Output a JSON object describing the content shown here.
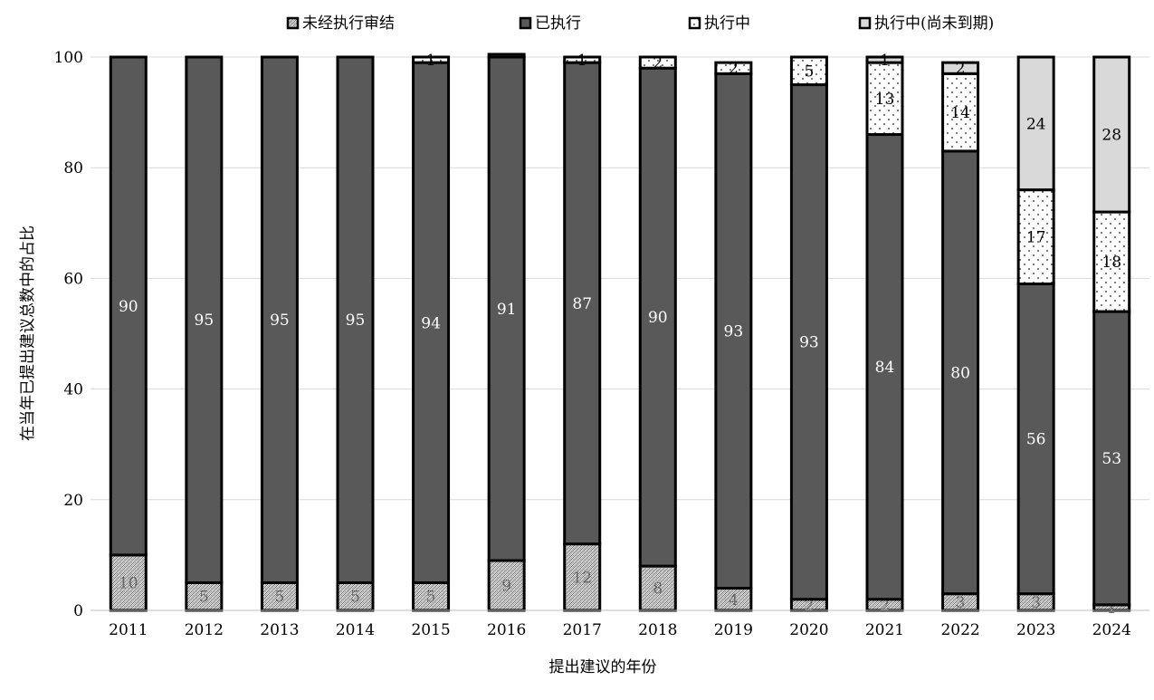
{
  "chart_data": {
    "type": "bar",
    "stacked": true,
    "title": "",
    "xlabel": "提出建议的年份",
    "ylabel": "在当年已提出建议总数中的占比",
    "ylim": [
      0,
      100
    ],
    "yticks": [
      "0",
      "20",
      "40",
      "60",
      "80",
      "100"
    ],
    "grid": true,
    "legend_position": "top",
    "categories": [
      "2011",
      "2012",
      "2013",
      "2014",
      "2015",
      "2016",
      "2017",
      "2018",
      "2019",
      "2020",
      "2021",
      "2022",
      "2023",
      "2024"
    ],
    "series": [
      {
        "name": "未经执行审结",
        "pattern": "crosshatch",
        "color": "#e6e6e6",
        "values": [
          10,
          5,
          5,
          5,
          5,
          9,
          12,
          8,
          4,
          2,
          2,
          3,
          3,
          1
        ],
        "labels": [
          "10",
          "5",
          "5",
          "5",
          "5",
          "9",
          "12",
          "8",
          "4",
          "2",
          "2",
          "3",
          "3",
          "1"
        ]
      },
      {
        "name": "已执行",
        "pattern": "solid",
        "color": "#595959",
        "values": [
          90,
          95,
          95,
          95,
          94,
          91,
          87,
          90,
          93,
          93,
          84,
          80,
          56,
          53
        ],
        "labels": [
          "90",
          "95",
          "95",
          "95",
          "94",
          "91",
          "87",
          "90",
          "93",
          "93",
          "84",
          "80",
          "56",
          "53"
        ]
      },
      {
        "name": "执行中",
        "pattern": "dots",
        "color": "#ffffff",
        "values": [
          0,
          0,
          0,
          0,
          1,
          0.5,
          1,
          2,
          2,
          5,
          13,
          14,
          17,
          18
        ],
        "labels": [
          "",
          "",
          "",
          "",
          "1",
          "",
          "1",
          "2",
          "2",
          "5",
          "13",
          "14",
          "17",
          "18"
        ]
      },
      {
        "name": "执行中(尚未到期)",
        "pattern": "solid-light",
        "color": "#d9d9d9",
        "values": [
          0,
          0,
          0,
          0,
          0,
          0,
          0,
          0,
          0,
          0,
          1,
          2,
          24,
          28
        ],
        "labels": [
          "",
          "",
          "",
          "",
          "",
          "",
          "",
          "",
          "",
          "",
          "1",
          "2",
          "24",
          "28"
        ]
      }
    ]
  }
}
